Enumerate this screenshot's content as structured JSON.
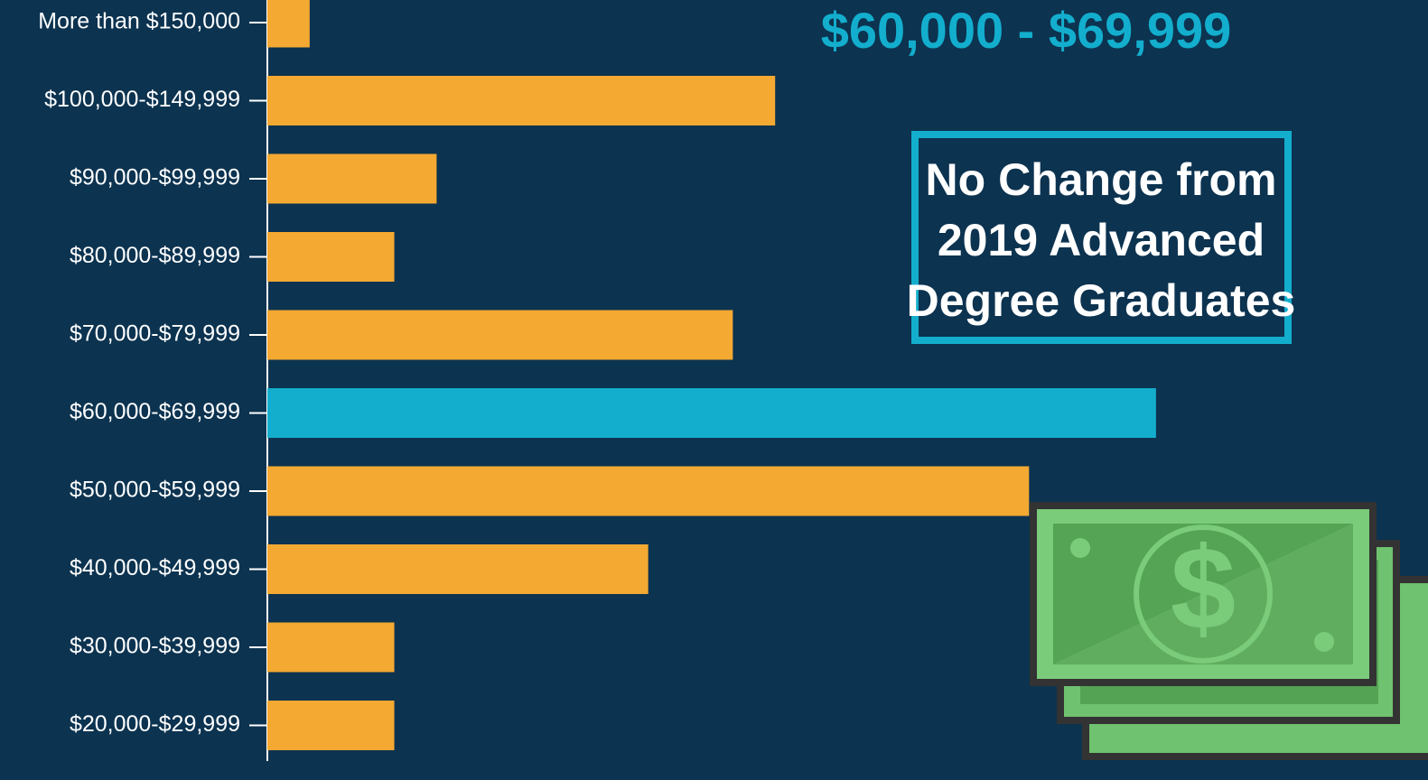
{
  "chart_data": {
    "type": "bar",
    "orientation": "horizontal",
    "title": "$60,000 - $69,999",
    "annotation": [
      "No Change from",
      "2019 Advanced",
      "Degree Graduates"
    ],
    "categories": [
      "More than $150,000",
      "$100,000-$149,999",
      "$90,000-$99,999",
      "$80,000-$89,999",
      "$70,000-$79,999",
      "$60,000-$69,999",
      "$50,000-$59,999",
      "$40,000-$49,999",
      "$30,000-$39,999",
      "$20,000-$29,999"
    ],
    "values": [
      1,
      12,
      4,
      3,
      11,
      21,
      18,
      9,
      3,
      3
    ],
    "colors": [
      "#f4a932",
      "#f4a932",
      "#f4a932",
      "#f4a932",
      "#f4a932",
      "#13aecd",
      "#f4a932",
      "#f4a932",
      "#f4a932",
      "#f4a932"
    ]
  }
}
